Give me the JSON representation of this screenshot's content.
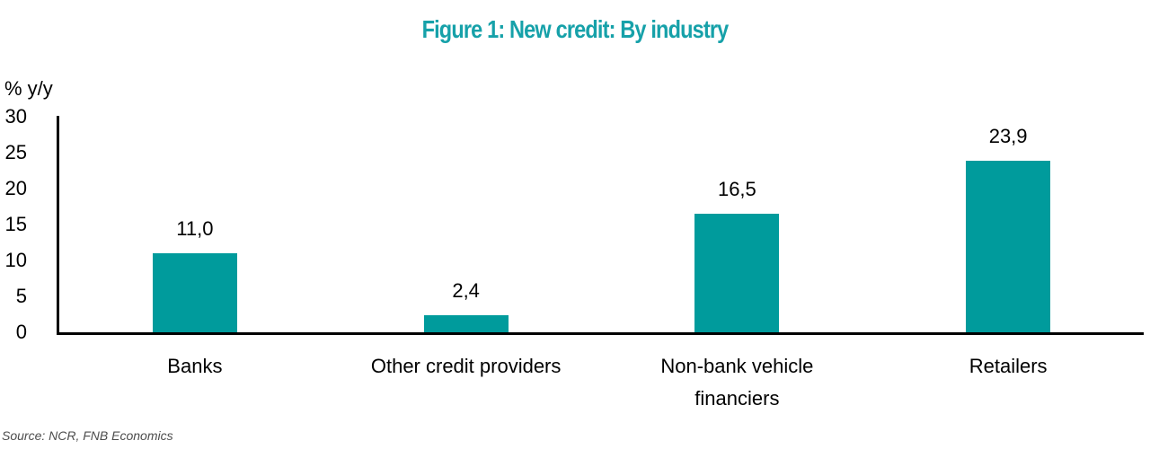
{
  "colors": {
    "title": "#16A1A9",
    "bar": "#009B9C",
    "axis": "#000000",
    "text": "#000000",
    "source": "#4D4D4D"
  },
  "chart_data": {
    "type": "bar",
    "title": "Figure 1: New credit: By industry",
    "ylabel": "% y/y",
    "xlabel": "",
    "categories": [
      "Banks",
      "Other credit providers",
      "Non-bank vehicle financiers",
      "Retailers"
    ],
    "values": [
      11.0,
      2.4,
      16.5,
      23.9
    ],
    "value_labels": [
      "11,0",
      "2,4",
      "16,5",
      "23,9"
    ],
    "ylim": [
      0,
      30
    ],
    "yticks": [
      0,
      5,
      10,
      15,
      20,
      25,
      30
    ],
    "grid": false,
    "legend": false,
    "decimal_separator": ","
  },
  "source": {
    "text": "Source: NCR, FNB Economics"
  }
}
